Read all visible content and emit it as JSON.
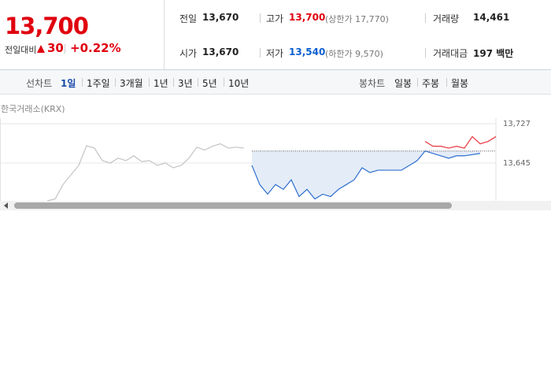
{
  "quote": {
    "price": "13,700",
    "change_label": "전일대비",
    "change": "30",
    "change_rate": "+0.22%"
  },
  "stats": [
    {
      "label": "전일",
      "value": "13,670"
    },
    {
      "label": "고가",
      "value": "13,700",
      "note": "(상한가 17,770)",
      "color": "#e0000f"
    },
    {
      "label": "거래량",
      "value": "14,461"
    },
    {
      "label": "시가",
      "value": "13,670"
    },
    {
      "label": "저가",
      "value": "13,540",
      "note": "(하한가 9,570)",
      "color": "#0b5fd0"
    },
    {
      "label": "거래대금",
      "value": "197 백만"
    }
  ],
  "tabs": {
    "label": "선차트",
    "items": [
      "1일",
      "1주일",
      "3개월",
      "1년",
      "3년",
      "5년",
      "10년"
    ],
    "active": 0
  },
  "candle_tabs": {
    "label": "봉차트",
    "items": [
      "일봉",
      "주봉",
      "월봉"
    ]
  },
  "source": "한국거래소(KRX)",
  "chart_data": {
    "type": "line",
    "xlim": [
      0,
      64
    ],
    "ylim": [
      13566,
      13727
    ],
    "yticks": [
      {
        "value": 13727,
        "label": "13,727"
      },
      {
        "value": 13645,
        "label": "13,645"
      }
    ],
    "grid": true,
    "reference": 13670,
    "series": [
      {
        "color": "#c4c4c4",
        "x": [
          6,
          7,
          8,
          9,
          10,
          11,
          12,
          13,
          14,
          15,
          16,
          17,
          18,
          19,
          20,
          21,
          22,
          23,
          24,
          25,
          26,
          27,
          28,
          29,
          30,
          31
        ],
        "values": [
          13566,
          13570,
          13600,
          13620,
          13640,
          13681,
          13676,
          13650,
          13645,
          13655,
          13650,
          13660,
          13648,
          13650,
          13640,
          13645,
          13635,
          13640,
          13655,
          13678,
          13672,
          13680,
          13685,
          13676,
          13678,
          13676
        ]
      },
      {
        "color": "#2f6fd0",
        "fill": "#e4ecf8",
        "x": [
          32,
          33,
          34,
          35,
          36,
          37,
          38,
          39,
          40,
          41,
          42,
          43,
          44,
          45,
          46,
          47,
          48,
          49,
          50,
          51,
          52,
          53,
          54,
          56,
          57,
          58,
          59,
          61
        ],
        "values": [
          13640,
          13600,
          13580,
          13600,
          13590,
          13610,
          13575,
          13590,
          13570,
          13580,
          13575,
          13590,
          13600,
          13610,
          13635,
          13625,
          13630,
          13630,
          13630,
          13630,
          13640,
          13650,
          13670,
          13660,
          13655,
          13660,
          13660,
          13665
        ]
      },
      {
        "color": "#e8353e",
        "x": [
          54,
          55,
          56,
          57,
          58,
          59,
          60,
          61,
          62,
          63
        ],
        "values": [
          13690,
          13680,
          13680,
          13676,
          13680,
          13676,
          13700,
          13685,
          13690,
          13700
        ]
      }
    ]
  }
}
